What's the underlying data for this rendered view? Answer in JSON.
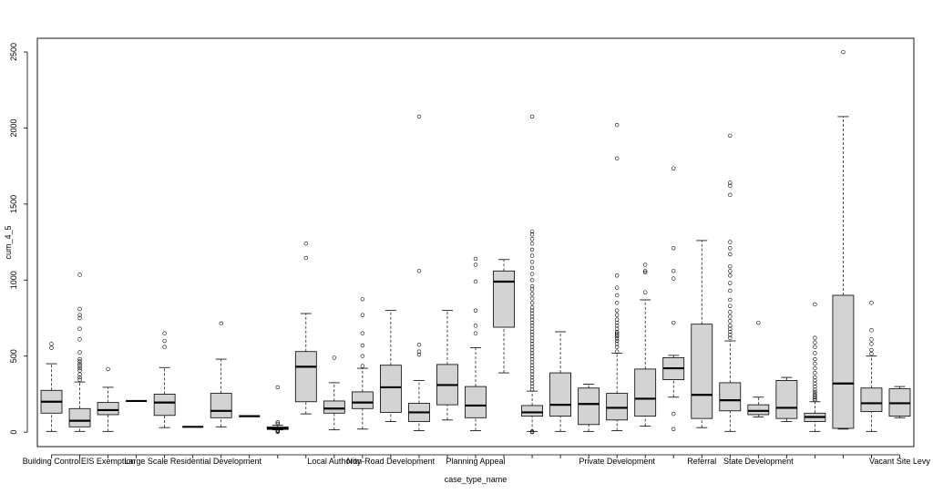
{
  "chart_data": {
    "type": "box",
    "title": "",
    "xlabel": "case_type_name",
    "ylabel": "cum_4_5",
    "ylim": [
      -95,
      2590
    ],
    "yticks": [
      0,
      500,
      1000,
      1500,
      2000,
      2500
    ],
    "x_tick_labels": [
      "Building Control",
      "EIS Exemption",
      "Large Scale Residential Development",
      "Local Authority",
      "Non-Road Development",
      "Planning Appeal",
      "Private Development",
      "Referral",
      "State Development",
      "Vacant Site Levy"
    ],
    "x_tick_label_positions": [
      1,
      3,
      6,
      11,
      13,
      16,
      21,
      24,
      26,
      31
    ],
    "box_fill": "#d3d3d3",
    "boxes": [
      {
        "pos": 1,
        "lw": 5,
        "q1": 125,
        "med": 200,
        "q3": 275,
        "hw": 450,
        "outliers": [
          555,
          580
        ]
      },
      {
        "pos": 2,
        "lw": 5,
        "q1": 35,
        "med": 75,
        "q3": 155,
        "hw": 330,
        "outliers": [
          345,
          360,
          380,
          405,
          420,
          435,
          450,
          465,
          480,
          525,
          610,
          680,
          750,
          770,
          810,
          1035
        ]
      },
      {
        "pos": 3,
        "lw": 5,
        "q1": 115,
        "med": 145,
        "q3": 195,
        "hw": 295,
        "outliers": [
          415
        ]
      },
      {
        "pos": 4,
        "lw": 205,
        "q1": 205,
        "med": 205,
        "q3": 205,
        "hw": 205,
        "outliers": []
      },
      {
        "pos": 5,
        "lw": 30,
        "q1": 110,
        "med": 195,
        "q3": 250,
        "hw": 425,
        "outliers": [
          560,
          600,
          650
        ]
      },
      {
        "pos": 6,
        "lw": 35,
        "q1": 35,
        "med": 35,
        "q3": 35,
        "hw": 35,
        "outliers": []
      },
      {
        "pos": 7,
        "lw": 35,
        "q1": 95,
        "med": 140,
        "q3": 255,
        "hw": 480,
        "outliers": [
          715
        ]
      },
      {
        "pos": 8,
        "lw": 105,
        "q1": 105,
        "med": 105,
        "q3": 105,
        "hw": 105,
        "outliers": []
      },
      {
        "pos": 9,
        "lw": 15,
        "q1": 18,
        "med": 25,
        "q3": 35,
        "hw": 45,
        "outliers": [
          2,
          5,
          8,
          12,
          55,
          65,
          295
        ]
      },
      {
        "pos": 10,
        "lw": 120,
        "q1": 200,
        "med": 430,
        "q3": 530,
        "hw": 780,
        "outliers": [
          1145,
          1240
        ]
      },
      {
        "pos": 11,
        "lw": 15,
        "q1": 125,
        "med": 155,
        "q3": 205,
        "hw": 325,
        "outliers": [
          490
        ]
      },
      {
        "pos": 12,
        "lw": 20,
        "q1": 155,
        "med": 195,
        "q3": 265,
        "hw": 420,
        "outliers": [
          435,
          500,
          570,
          650,
          770,
          875
        ]
      },
      {
        "pos": 13,
        "lw": 70,
        "q1": 130,
        "med": 295,
        "q3": 440,
        "hw": 800,
        "outliers": []
      },
      {
        "pos": 14,
        "lw": 10,
        "q1": 70,
        "med": 130,
        "q3": 190,
        "hw": 340,
        "outliers": [
          510,
          530,
          575,
          1060,
          2075
        ]
      },
      {
        "pos": 15,
        "lw": 80,
        "q1": 180,
        "med": 310,
        "q3": 445,
        "hw": 800,
        "outliers": []
      },
      {
        "pos": 16,
        "lw": 10,
        "q1": 95,
        "med": 175,
        "q3": 300,
        "hw": 555,
        "outliers": [
          650,
          700,
          800,
          990,
          1100,
          1140
        ]
      },
      {
        "pos": 17,
        "lw": 390,
        "q1": 690,
        "med": 990,
        "q3": 1060,
        "hw": 1135,
        "outliers": []
      },
      {
        "pos": 18,
        "lw": 5,
        "q1": 105,
        "med": 130,
        "q3": 175,
        "hw": 270,
        "outliers": [
          0,
          5,
          280,
          300,
          320,
          340,
          360,
          380,
          400,
          420,
          440,
          460,
          480,
          500,
          520,
          540,
          560,
          580,
          600,
          620,
          640,
          660,
          680,
          700,
          720,
          740,
          760,
          780,
          800,
          820,
          850,
          880,
          910,
          940,
          960,
          1000,
          1040,
          1080,
          1120,
          1160,
          1200,
          1240,
          1270,
          1300,
          1320,
          2075
        ]
      },
      {
        "pos": 19,
        "lw": 5,
        "q1": 105,
        "med": 180,
        "q3": 390,
        "hw": 660,
        "outliers": []
      },
      {
        "pos": 20,
        "lw": 5,
        "q1": 50,
        "med": 185,
        "q3": 290,
        "hw": 315,
        "outliers": []
      },
      {
        "pos": 21,
        "lw": 10,
        "q1": 80,
        "med": 160,
        "q3": 255,
        "hw": 520,
        "outliers": [
          530,
          560,
          580,
          600,
          615,
          630,
          640,
          650,
          660,
          680,
          700,
          720,
          740,
          770,
          800,
          850,
          900,
          950,
          1030,
          1800,
          2020
        ]
      },
      {
        "pos": 22,
        "lw": 40,
        "q1": 105,
        "med": 220,
        "q3": 415,
        "hw": 870,
        "outliers": [
          920,
          1050,
          1060,
          1100
        ]
      },
      {
        "pos": 23,
        "lw": 230,
        "q1": 345,
        "med": 420,
        "q3": 490,
        "hw": 505,
        "outliers": [
          20,
          120,
          720,
          1010,
          1060,
          1210,
          1735
        ]
      },
      {
        "pos": 24,
        "lw": 30,
        "q1": 90,
        "med": 245,
        "q3": 710,
        "hw": 1260,
        "outliers": []
      },
      {
        "pos": 25,
        "lw": 5,
        "q1": 140,
        "med": 210,
        "q3": 325,
        "hw": 600,
        "outliers": [
          620,
          640,
          660,
          680,
          700,
          730,
          760,
          790,
          830,
          870,
          930,
          980,
          1030,
          1060,
          1090,
          1170,
          1210,
          1250,
          1560,
          1620,
          1640,
          1950
        ]
      },
      {
        "pos": 26,
        "lw": 100,
        "q1": 115,
        "med": 140,
        "q3": 180,
        "hw": 230,
        "outliers": [
          720
        ]
      },
      {
        "pos": 27,
        "lw": 70,
        "q1": 90,
        "med": 160,
        "q3": 340,
        "hw": 360,
        "outliers": []
      },
      {
        "pos": 28,
        "lw": 5,
        "q1": 70,
        "med": 100,
        "q3": 125,
        "hw": 200,
        "outliers": [
          210,
          220,
          230,
          240,
          250,
          265,
          280,
          300,
          320,
          340,
          360,
          390,
          420,
          450,
          480,
          520,
          560,
          590,
          620,
          840
        ]
      },
      {
        "pos": 29,
        "lw": 20,
        "q1": 25,
        "med": 320,
        "q3": 900,
        "hw": 2075,
        "outliers": [
          2500
        ]
      },
      {
        "pos": 30,
        "lw": 5,
        "q1": 135,
        "med": 190,
        "q3": 290,
        "hw": 500,
        "outliers": [
          515,
          540,
          580,
          610,
          670,
          850
        ]
      },
      {
        "pos": 31,
        "lw": 95,
        "q1": 105,
        "med": 190,
        "q3": 285,
        "hw": 300,
        "outliers": []
      }
    ]
  }
}
